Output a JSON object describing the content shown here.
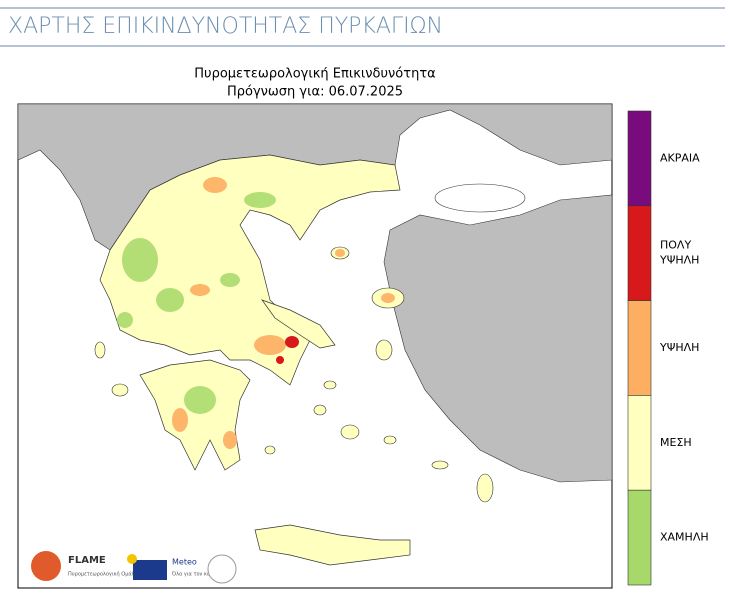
{
  "header": {
    "title": "ΧΑΡΤΗΣ ΕΠΙΚΙΝΔΥΝΟΤΗΤΑΣ ΠΥΡΚΑΓΙΩΝ"
  },
  "map": {
    "title": "Πυρομετεωρολογική Επικινδυνότητα",
    "subtitle": "Πρόγνωση για: 06.07.2025"
  },
  "legend": {
    "levels": [
      {
        "lines": [
          "ΑΚΡΑΙΑ"
        ],
        "color": "#7a0b7d"
      },
      {
        "lines": [
          "ΠΟΛΥ",
          "ΥΨΗΛΗ"
        ],
        "color": "#d7191c"
      },
      {
        "lines": [
          "ΥΨΗΛΗ"
        ],
        "color": "#fdae61"
      },
      {
        "lines": [
          "ΜΕΣΗ"
        ],
        "color": "#ffffbf"
      },
      {
        "lines": [
          "ΧΑΜΗΛΗ"
        ],
        "color": "#a6d96a"
      }
    ]
  },
  "logos": {
    "flame": "FLAME",
    "flame_sub": "Πυρομετεωρολογική Ομάδα",
    "meteo": "Meteo",
    "meteo_sub": "Όλα για τον καιρό"
  }
}
